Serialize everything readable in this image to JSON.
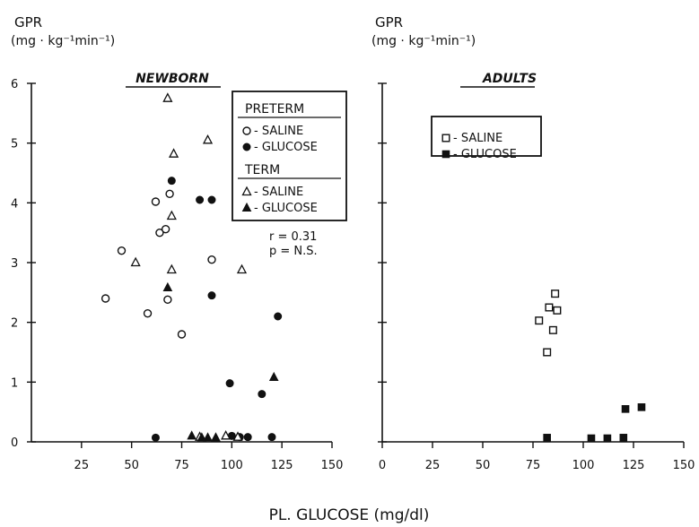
{
  "figure": {
    "xlabel": "PL. GLUCOSE (mg/dl)"
  },
  "chart_data": [
    {
      "type": "scatter",
      "title": "NEWBORN",
      "ylabel_line1": "GPR",
      "ylabel_line2": "(mg · kg⁻¹min⁻¹)",
      "xlim": [
        0,
        150
      ],
      "ylim": [
        0,
        6
      ],
      "xticks": [
        25,
        50,
        75,
        100,
        125,
        150
      ],
      "yticks": [
        0,
        1,
        2,
        3,
        4,
        5,
        6
      ],
      "legend": {
        "placement": "top-right",
        "groups": [
          {
            "heading": "PRETERM",
            "entries": [
              {
                "marker": "open-circle",
                "label": "o-SALINE"
              },
              {
                "marker": "filled-circle",
                "label": "●-GLUCOSE"
              }
            ]
          },
          {
            "heading": "TERM",
            "entries": [
              {
                "marker": "open-triangle",
                "label": "△-SALINE"
              },
              {
                "marker": "filled-triangle",
                "label": "▲-GLUCOSE"
              }
            ]
          }
        ]
      },
      "annotations": [
        "r = 0.31",
        "p = N.S."
      ],
      "series": [
        {
          "name": "PRETERM SALINE",
          "marker": "open-circle",
          "points": [
            [
              37,
              2.4
            ],
            [
              45,
              3.2
            ],
            [
              58,
              2.15
            ],
            [
              62,
              4.02
            ],
            [
              64,
              3.5
            ],
            [
              67,
              3.56
            ],
            [
              68,
              2.38
            ],
            [
              69,
              4.15
            ],
            [
              75,
              1.8
            ],
            [
              90,
              3.05
            ]
          ]
        },
        {
          "name": "PRETERM GLUCOSE",
          "marker": "filled-circle",
          "points": [
            [
              62,
              0.07
            ],
            [
              70,
              4.37
            ],
            [
              84,
              4.05
            ],
            [
              90,
              4.05
            ],
            [
              90,
              2.45
            ],
            [
              99,
              0.98
            ],
            [
              100,
              0.1
            ],
            [
              104,
              0.08
            ],
            [
              108,
              0.08
            ],
            [
              115,
              0.8
            ],
            [
              120,
              0.08
            ],
            [
              123,
              2.1
            ]
          ]
        },
        {
          "name": "TERM SALINE",
          "marker": "open-triangle",
          "points": [
            [
              52,
              3.0
            ],
            [
              68,
              5.75
            ],
            [
              70,
              2.88
            ],
            [
              70,
              3.78
            ],
            [
              71,
              4.82
            ],
            [
              88,
              5.05
            ],
            [
              105,
              2.88
            ],
            [
              84,
              0.08
            ],
            [
              92,
              0.06
            ],
            [
              97,
              0.1
            ],
            [
              103,
              0.08
            ]
          ]
        },
        {
          "name": "TERM GLUCOSE",
          "marker": "filled-triangle",
          "points": [
            [
              68,
              2.58
            ],
            [
              80,
              0.1
            ],
            [
              85,
              0.07
            ],
            [
              88,
              0.07
            ],
            [
              92,
              0.07
            ],
            [
              121,
              1.08
            ]
          ]
        }
      ]
    },
    {
      "type": "scatter",
      "title": "ADULTS",
      "ylabel_line1": "GPR",
      "ylabel_line2": "(mg · kg⁻¹min⁻¹)",
      "xlim": [
        0,
        150
      ],
      "ylim": [
        0,
        6
      ],
      "xticks": [
        0,
        25,
        50,
        75,
        100,
        125,
        150
      ],
      "yticks": [
        0,
        1,
        2,
        3,
        4,
        5,
        6
      ],
      "legend": {
        "placement": "top-left",
        "groups": [
          {
            "heading": "",
            "entries": [
              {
                "marker": "open-square",
                "label": "□-SALINE"
              },
              {
                "marker": "filled-square",
                "label": "■-GLUCOSE"
              }
            ]
          }
        ]
      },
      "series": [
        {
          "name": "SALINE",
          "marker": "open-square",
          "points": [
            [
              78,
              2.03
            ],
            [
              82,
              1.5
            ],
            [
              83,
              2.25
            ],
            [
              85,
              1.87
            ],
            [
              86,
              2.48
            ],
            [
              87,
              2.2
            ]
          ]
        },
        {
          "name": "GLUCOSE",
          "marker": "filled-square",
          "points": [
            [
              82,
              0.07
            ],
            [
              104,
              0.06
            ],
            [
              112,
              0.06
            ],
            [
              120,
              0.07
            ],
            [
              121,
              0.55
            ],
            [
              129,
              0.58
            ]
          ]
        }
      ]
    }
  ]
}
